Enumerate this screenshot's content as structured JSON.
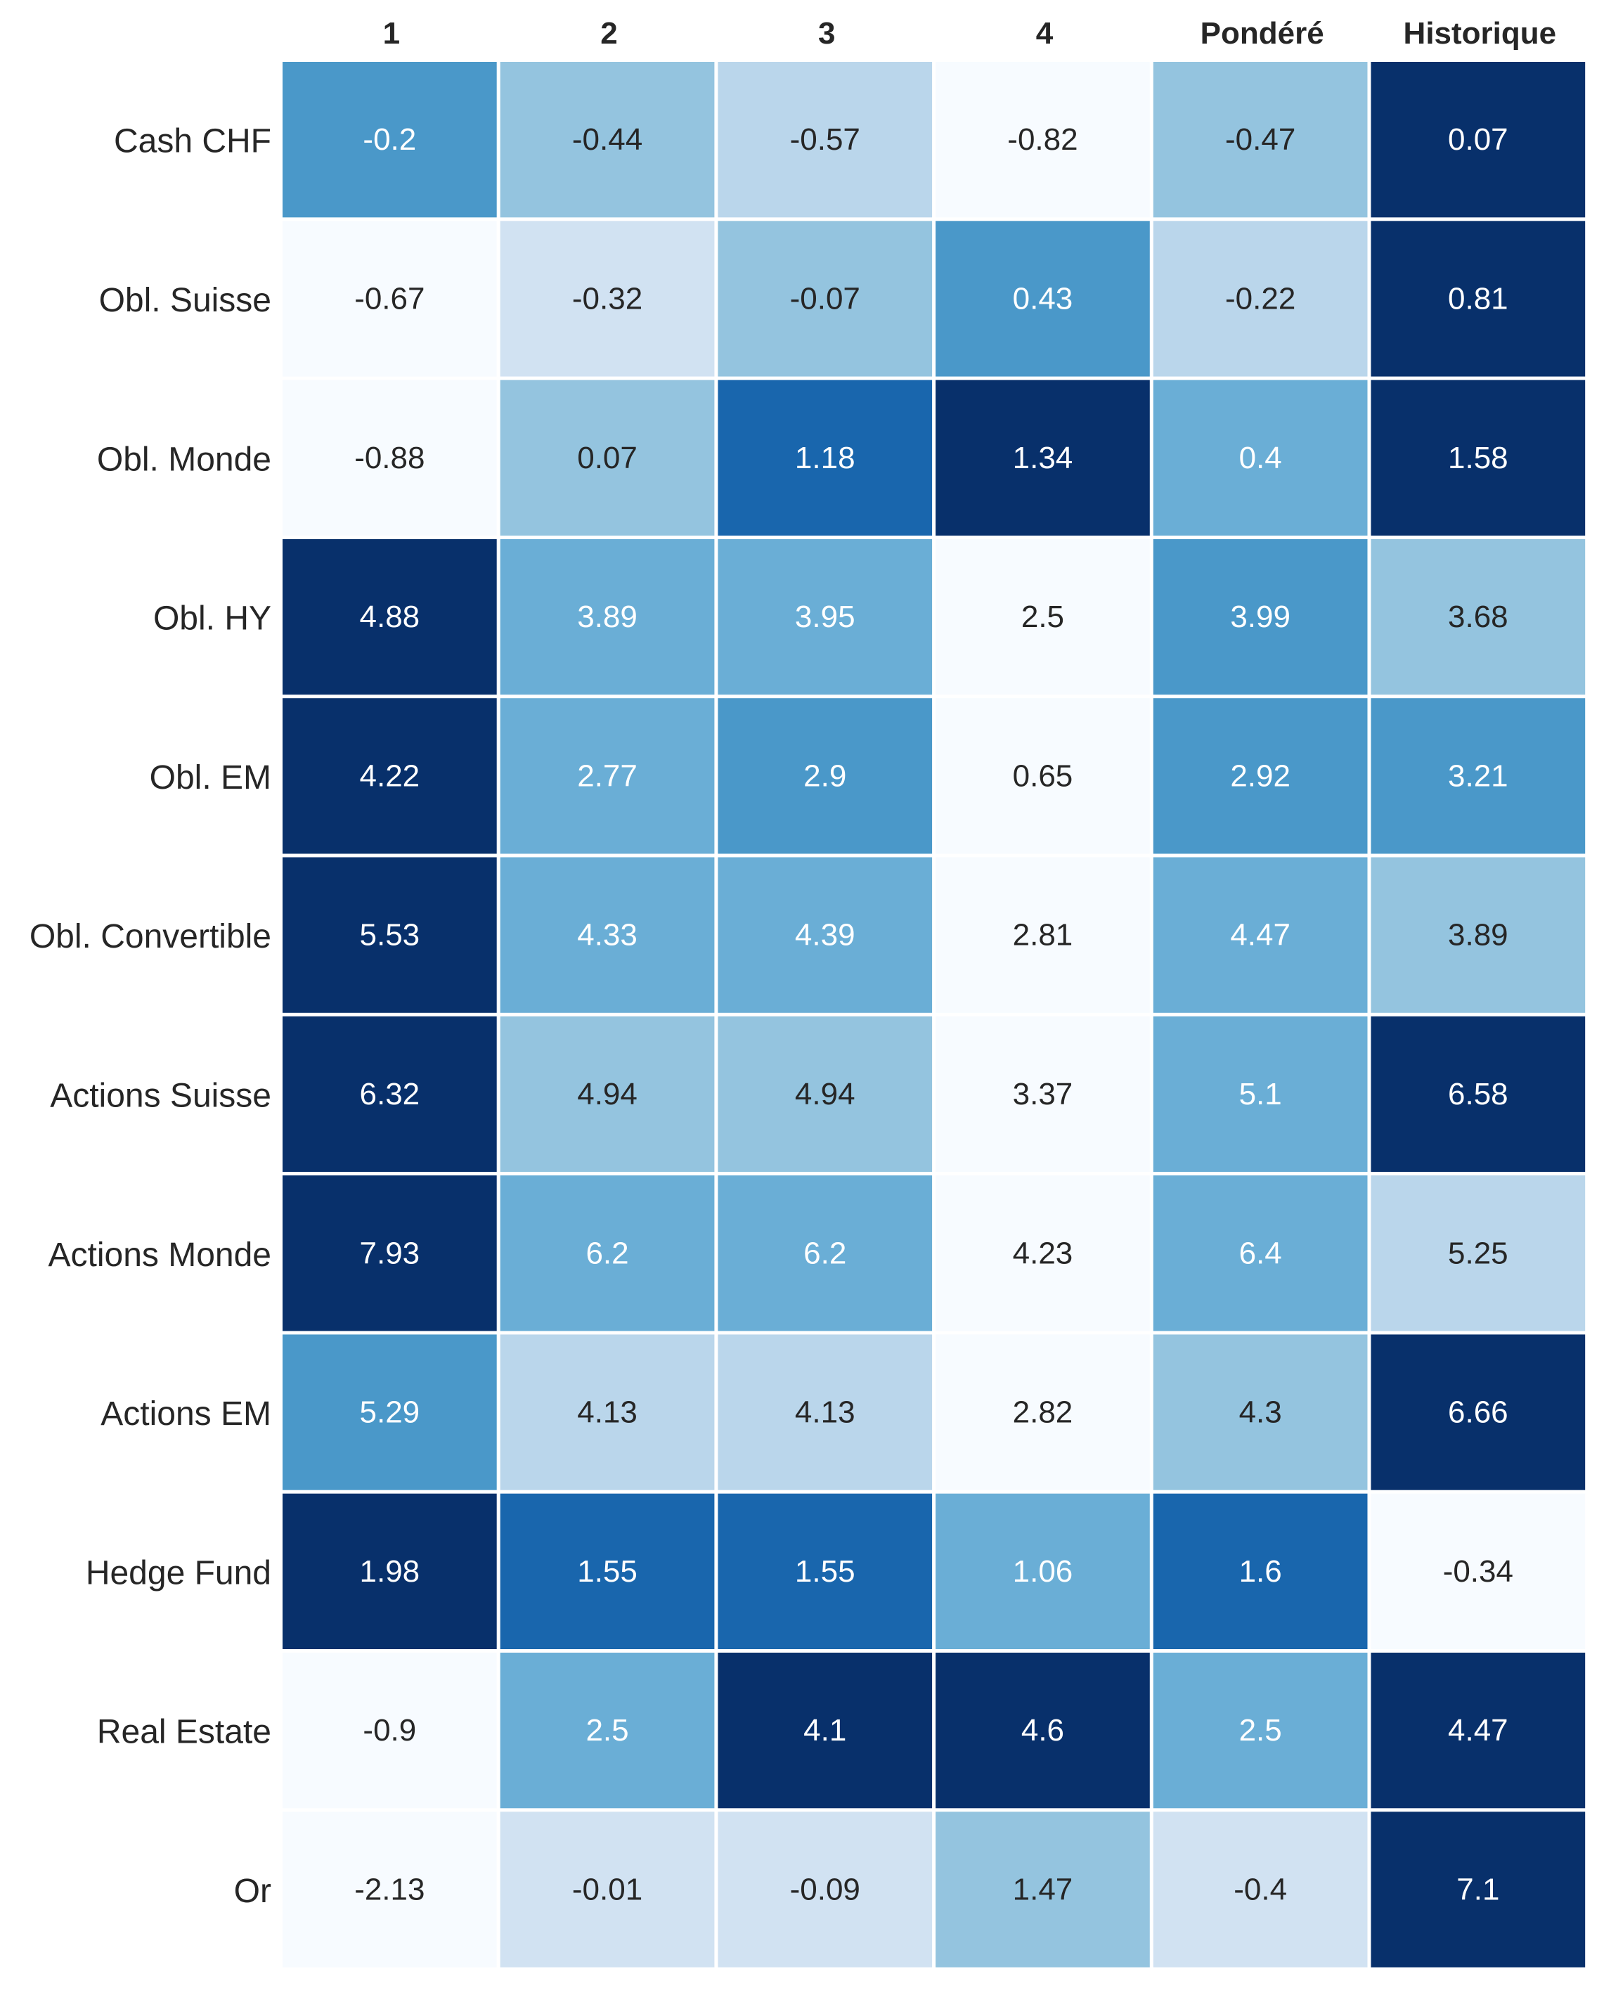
{
  "chart_data": {
    "type": "heatmap",
    "colormap": "Blues",
    "color_scale": "per-row",
    "grid": false,
    "column_labels": [
      "1",
      "2",
      "3",
      "4",
      "Pondéré",
      "Historique"
    ],
    "row_labels": [
      "Cash CHF",
      "Obl. Suisse",
      "Obl. Monde",
      "Obl. HY",
      "Obl. EM",
      "Obl. Convertible",
      "Actions Suisse",
      "Actions Monde",
      "Actions EM",
      "Hedge Fund",
      "Real Estate",
      "Or"
    ],
    "values": [
      [
        "-0.2",
        "-0.44",
        "-0.57",
        "-0.82",
        "-0.47",
        "0.07"
      ],
      [
        "-0.67",
        "-0.32",
        "-0.07",
        "0.43",
        "-0.22",
        "0.81"
      ],
      [
        "-0.88",
        "0.07",
        "1.18",
        "1.34",
        "0.4",
        "1.58"
      ],
      [
        "4.88",
        "3.89",
        "3.95",
        "2.5",
        "3.99",
        "3.68"
      ],
      [
        "4.22",
        "2.77",
        "2.9",
        "0.65",
        "2.92",
        "3.21"
      ],
      [
        "5.53",
        "4.33",
        "4.39",
        "2.81",
        "4.47",
        "3.89"
      ],
      [
        "6.32",
        "4.94",
        "4.94",
        "3.37",
        "5.1",
        "6.58"
      ],
      [
        "7.93",
        "6.2",
        "6.2",
        "4.23",
        "6.4",
        "5.25"
      ],
      [
        "5.29",
        "4.13",
        "4.13",
        "2.82",
        "4.3",
        "6.66"
      ],
      [
        "1.98",
        "1.55",
        "1.55",
        "1.06",
        "1.6",
        "-0.34"
      ],
      [
        "-0.9",
        "2.5",
        "4.1",
        "4.6",
        "2.5",
        "4.47"
      ],
      [
        "-2.13",
        "-0.01",
        "-0.09",
        "1.47",
        "-0.4",
        "7.1"
      ]
    ],
    "colors": {
      "blues_ramp": [
        "#f7fbff",
        "#d1e2f2",
        "#bad6eb",
        "#94c4df",
        "#6aaed6",
        "#4a98c9",
        "#1966ad",
        "#08306b"
      ],
      "light_text": "#ffffff",
      "dark_text": "#262626",
      "cell_border": "#ffffff"
    }
  }
}
